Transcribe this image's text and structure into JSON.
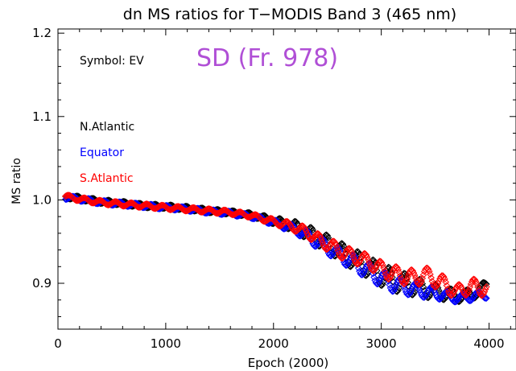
{
  "chart_data": {
    "type": "scatter",
    "title": "dn MS ratios for T−MODIS Band 3 (465 nm)",
    "xlabel": "Epoch (2000)",
    "ylabel": "MS ratio",
    "xlim": [
      0,
      4250
    ],
    "ylim": [
      0.845,
      1.205
    ],
    "xticks": [
      0,
      1000,
      2000,
      3000,
      4000
    ],
    "xtick_labels": [
      "0",
      "1000",
      "2000",
      "3000",
      "4000"
    ],
    "yticks": [
      0.9,
      1.0,
      1.1,
      1.2
    ],
    "ytick_labels": [
      "0.9",
      "1.0",
      "1.1",
      "1.2"
    ],
    "grid": false,
    "marker": "diamond",
    "annotations": {
      "symbol_note": "Symbol: EV",
      "headline": "SD (Fr. 978)",
      "headline_color": "#b04fd6"
    },
    "legend_placement": "top-left",
    "series": [
      {
        "name": "N.Atlantic",
        "color": "#000000",
        "x": [
          70,
          200,
          400,
          600,
          800,
          1000,
          1200,
          1400,
          1600,
          1800,
          2000,
          2100,
          2200,
          2300,
          2400,
          2500,
          2600,
          2700,
          2800,
          2900,
          3000,
          3100,
          3200,
          3300,
          3400,
          3500,
          3600,
          3700,
          3800,
          3900,
          3980
        ],
        "y": [
          1.004,
          1.002,
          0.998,
          0.996,
          0.993,
          0.992,
          0.99,
          0.987,
          0.985,
          0.982,
          0.975,
          0.972,
          0.968,
          0.962,
          0.955,
          0.948,
          0.94,
          0.932,
          0.925,
          0.918,
          0.91,
          0.905,
          0.9,
          0.897,
          0.893,
          0.89,
          0.888,
          0.884,
          0.886,
          0.89,
          0.9
        ],
        "spread": [
          0.003,
          0.003,
          0.003,
          0.003,
          0.003,
          0.003,
          0.003,
          0.003,
          0.003,
          0.003,
          0.005,
          0.006,
          0.008,
          0.01,
          0.011,
          0.012,
          0.013,
          0.014,
          0.015,
          0.015,
          0.016,
          0.016,
          0.016,
          0.014,
          0.012,
          0.011,
          0.01,
          0.008,
          0.008,
          0.008,
          0.006
        ]
      },
      {
        "name": "Equator",
        "color": "#0000ff",
        "x": [
          70,
          200,
          400,
          600,
          800,
          1000,
          1200,
          1400,
          1600,
          1800,
          2000,
          2100,
          2200,
          2300,
          2400,
          2500,
          2600,
          2700,
          2800,
          2900,
          3000,
          3100,
          3200,
          3300,
          3400,
          3500,
          3600,
          3700,
          3800,
          3900,
          3980
        ],
        "y": [
          1.003,
          1.001,
          0.997,
          0.995,
          0.993,
          0.991,
          0.989,
          0.986,
          0.984,
          0.98,
          0.973,
          0.969,
          0.965,
          0.958,
          0.95,
          0.943,
          0.935,
          0.928,
          0.921,
          0.913,
          0.906,
          0.9,
          0.896,
          0.893,
          0.89,
          0.888,
          0.885,
          0.882,
          0.883,
          0.886,
          0.886
        ],
        "spread": [
          0.003,
          0.003,
          0.003,
          0.003,
          0.003,
          0.003,
          0.003,
          0.003,
          0.003,
          0.003,
          0.004,
          0.005,
          0.006,
          0.008,
          0.009,
          0.01,
          0.01,
          0.011,
          0.012,
          0.012,
          0.012,
          0.012,
          0.011,
          0.01,
          0.009,
          0.008,
          0.007,
          0.006,
          0.006,
          0.006,
          0.005
        ]
      },
      {
        "name": "S.Atlantic",
        "color": "#ff0000",
        "x": [
          70,
          200,
          400,
          600,
          800,
          1000,
          1200,
          1400,
          1600,
          1800,
          2000,
          2100,
          2200,
          2300,
          2400,
          2500,
          2600,
          2700,
          2800,
          2900,
          3000,
          3100,
          3200,
          3300,
          3400,
          3500,
          3600,
          3700,
          3800,
          3900,
          3980
        ],
        "y": [
          1.004,
          1.001,
          0.997,
          0.995,
          0.993,
          0.991,
          0.989,
          0.987,
          0.985,
          0.981,
          0.974,
          0.971,
          0.967,
          0.962,
          0.954,
          0.947,
          0.94,
          0.934,
          0.93,
          0.925,
          0.917,
          0.912,
          0.909,
          0.906,
          0.91,
          0.905,
          0.898,
          0.889,
          0.896,
          0.895,
          0.893
        ],
        "spread": [
          0.003,
          0.003,
          0.003,
          0.003,
          0.003,
          0.003,
          0.003,
          0.003,
          0.003,
          0.003,
          0.004,
          0.005,
          0.006,
          0.007,
          0.008,
          0.009,
          0.01,
          0.01,
          0.01,
          0.01,
          0.011,
          0.011,
          0.012,
          0.012,
          0.012,
          0.012,
          0.011,
          0.01,
          0.012,
          0.012,
          0.01
        ]
      }
    ]
  }
}
